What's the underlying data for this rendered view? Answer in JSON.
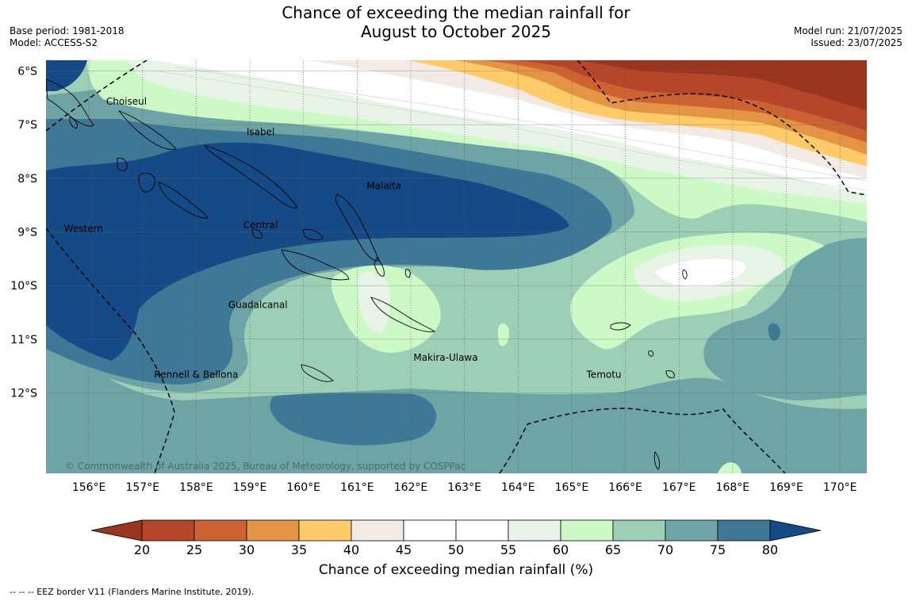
{
  "header": {
    "title_line1": "Chance of exceeding the median rainfall for",
    "title_line2": "August to October 2025",
    "base_period": "Base period: 1981-2018",
    "model": "Model: ACCESS-S2",
    "model_run": "Model run: 21/07/2025",
    "issued": "Issued: 23/07/2025"
  },
  "map": {
    "lon_range": [
      155.2,
      170.5
    ],
    "lat_range": [
      -5.8,
      -13.5
    ],
    "lon_ticks": [
      156,
      157,
      158,
      159,
      160,
      161,
      162,
      163,
      164,
      165,
      166,
      167,
      168,
      169,
      170
    ],
    "lon_tick_labels": [
      "156°E",
      "157°E",
      "158°E",
      "159°E",
      "160°E",
      "161°E",
      "162°E",
      "163°E",
      "164°E",
      "165°E",
      "166°E",
      "167°E",
      "168°E",
      "169°E",
      "170°E"
    ],
    "lat_ticks": [
      -6,
      -7,
      -8,
      -9,
      -10,
      -11,
      -12
    ],
    "lat_tick_labels": [
      "6°S",
      "7°S",
      "8°S",
      "9°S",
      "10°S",
      "11°S",
      "12°S"
    ],
    "copyright": "© Commonwealth of Australia 2025, Bureau of Meteorology, supported by COSPPac",
    "provinces": [
      {
        "name": "Choiseul",
        "lon": 156.7,
        "lat": -6.63
      },
      {
        "name": "Isabel",
        "lon": 159.2,
        "lat": -7.2
      },
      {
        "name": "Malaita",
        "lon": 161.5,
        "lat": -8.2
      },
      {
        "name": "Western",
        "lon": 155.9,
        "lat": -9.0
      },
      {
        "name": "Central",
        "lon": 159.2,
        "lat": -8.93
      },
      {
        "name": "Guadalcanal",
        "lon": 159.15,
        "lat": -10.42
      },
      {
        "name": "Makira-Ulawa",
        "lon": 162.65,
        "lat": -11.4
      },
      {
        "name": "Rennell & Bellona",
        "lon": 158.0,
        "lat": -11.72
      },
      {
        "name": "Temotu",
        "lon": 165.6,
        "lat": -11.72
      }
    ]
  },
  "colorbar": {
    "labels": [
      "20",
      "25",
      "30",
      "35",
      "40",
      "45",
      "50",
      "55",
      "60",
      "65",
      "70",
      "75",
      "80"
    ],
    "colors": [
      "#9a3520",
      "#b5462a",
      "#cc6330",
      "#e39445",
      "#fecb68",
      "#f2ebe5",
      "#ffffff",
      "#ffffff",
      "#e9f4e8",
      "#ccf9c6",
      "#9dcfb6",
      "#6fa4a6",
      "#3f7797",
      "#164a86"
    ],
    "title": "Chance of exceeding median rainfall (%)"
  },
  "footer": {
    "eez_note": "--  --  -- EEZ border V11 (Flanders Marine Institute, 2019)."
  }
}
